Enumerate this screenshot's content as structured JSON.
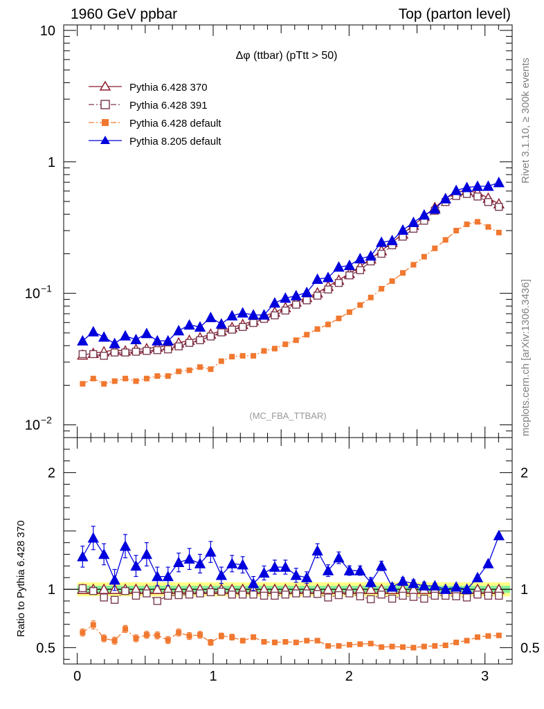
{
  "header": {
    "left": "1960 GeV ppbar",
    "right": "Top (parton level)"
  },
  "side_labels": {
    "rivet": "Rivet 3.1.10, ≥ 300k events",
    "source": "mcplots.cern.ch [arXiv:1306.3436]"
  },
  "chart_data": [
    {
      "panel": "main",
      "type": "line",
      "title": "Δφ (ttbar) (pTtt > 50)",
      "analysis_label": "(MC_FBA_TTBAR)",
      "xlabel": "",
      "ylabel": "",
      "yscale": "log",
      "xlim": [
        -0.1,
        3.2
      ],
      "ylim": [
        0.008,
        11
      ],
      "y_ticks": [
        {
          "value": 10,
          "label": "10"
        },
        {
          "value": 1,
          "label": "1"
        },
        {
          "value": 0.1,
          "base": "10",
          "exp": "−1"
        },
        {
          "value": 0.01,
          "base": "10",
          "exp": "−2"
        }
      ],
      "x": [
        0.0393,
        0.1178,
        0.1963,
        0.2749,
        0.3534,
        0.432,
        0.5105,
        0.589,
        0.6676,
        0.7461,
        0.8247,
        0.9032,
        0.9817,
        1.0603,
        1.1388,
        1.2174,
        1.2959,
        1.3744,
        1.453,
        1.5315,
        1.6101,
        1.6886,
        1.7671,
        1.8457,
        1.9242,
        2.0028,
        2.0813,
        2.1598,
        2.2384,
        2.3169,
        2.3955,
        2.474,
        2.5525,
        2.6311,
        2.7096,
        2.7882,
        2.8667,
        2.9452,
        3.0238,
        3.1023
      ],
      "series": [
        {
          "name": "Pythia 6.428 370",
          "color": "#8B1A2B",
          "marker": "triangle-open",
          "line": "solid",
          "values": [
            0.034,
            0.035,
            0.036,
            0.037,
            0.0365,
            0.0375,
            0.038,
            0.039,
            0.04,
            0.042,
            0.044,
            0.046,
            0.049,
            0.052,
            0.055,
            0.058,
            0.062,
            0.067,
            0.072,
            0.078,
            0.086,
            0.093,
            0.101,
            0.113,
            0.126,
            0.142,
            0.16,
            0.183,
            0.211,
            0.244,
            0.283,
            0.33,
            0.385,
            0.45,
            0.525,
            0.59,
            0.605,
            0.585,
            0.53,
            0.48
          ]
        },
        {
          "name": "Pythia 6.428 391",
          "color": "#7A3B50",
          "marker": "square-open",
          "line": "dashdot",
          "values": [
            0.0345,
            0.0345,
            0.0335,
            0.0355,
            0.0355,
            0.036,
            0.0365,
            0.037,
            0.0375,
            0.0395,
            0.042,
            0.044,
            0.047,
            0.0505,
            0.053,
            0.0555,
            0.0595,
            0.064,
            0.068,
            0.074,
            0.082,
            0.0885,
            0.096,
            0.107,
            0.12,
            0.137,
            0.15,
            0.175,
            0.2,
            0.232,
            0.27,
            0.31,
            0.357,
            0.425,
            0.495,
            0.55,
            0.57,
            0.545,
            0.495,
            0.455
          ]
        },
        {
          "name": "Pythia 6.428 default",
          "color": "#F07830",
          "marker": "square-filled",
          "line": "dashdot",
          "values": [
            0.0205,
            0.0225,
            0.0205,
            0.0215,
            0.0225,
            0.0215,
            0.0225,
            0.0235,
            0.0235,
            0.0255,
            0.026,
            0.0275,
            0.0265,
            0.0305,
            0.033,
            0.0335,
            0.0335,
            0.0365,
            0.038,
            0.041,
            0.044,
            0.0485,
            0.0535,
            0.058,
            0.0645,
            0.072,
            0.0815,
            0.093,
            0.1085,
            0.124,
            0.143,
            0.165,
            0.19,
            0.22,
            0.255,
            0.3,
            0.335,
            0.35,
            0.32,
            0.29
          ]
        },
        {
          "name": "Pythia 8.205 default",
          "color": "#0000DD",
          "marker": "triangle-filled",
          "line": "solid",
          "values": [
            0.0435,
            0.051,
            0.0465,
            0.0415,
            0.0475,
            0.0445,
            0.0495,
            0.0435,
            0.0435,
            0.052,
            0.0575,
            0.0555,
            0.0655,
            0.0585,
            0.0675,
            0.071,
            0.0685,
            0.0685,
            0.0845,
            0.092,
            0.096,
            0.1015,
            0.128,
            0.132,
            0.1585,
            0.163,
            0.1835,
            0.1925,
            0.2445,
            0.252,
            0.3025,
            0.346,
            0.3945,
            0.4375,
            0.5245,
            0.606,
            0.638,
            0.6515,
            0.653,
            0.696
          ]
        }
      ],
      "errors": {
        "Pythia 8.205 default": 0.07,
        "Pythia 6.428 370": 0.03,
        "Pythia 6.428 391": 0.03,
        "Pythia 6.428 default": 0.03
      }
    },
    {
      "panel": "ratio",
      "type": "line",
      "ylabel": "Ratio to Pythia 6.428 370",
      "xlabel": "",
      "xlim": [
        -0.1,
        3.2
      ],
      "ylim": [
        0.36,
        2.3
      ],
      "y_ticks": [
        {
          "value": 0.5,
          "label": "0.5"
        },
        {
          "value": 1,
          "label": "1"
        },
        {
          "value": 2,
          "label": "2"
        }
      ],
      "x_ticks": [
        {
          "value": 0,
          "label": "0"
        },
        {
          "value": 1,
          "label": "1"
        },
        {
          "value": 2,
          "label": "2"
        },
        {
          "value": 3,
          "label": "3"
        }
      ],
      "reference_band": {
        "inner": [
          0.97,
          1.03
        ],
        "outer": [
          0.94,
          1.06
        ]
      },
      "series": [
        {
          "name": "Pythia 6.428 391",
          "color": "#7A3B50",
          "marker": "square-open",
          "line": "dashdot",
          "values": [
            1.01,
            0.985,
            0.93,
            0.91,
            0.985,
            0.945,
            0.965,
            0.9,
            0.945,
            0.95,
            0.955,
            0.965,
            0.975,
            0.98,
            0.955,
            0.955,
            0.955,
            0.945,
            0.945,
            0.955,
            0.965,
            0.965,
            0.96,
            0.93,
            0.95,
            0.965,
            0.94,
            0.915,
            0.955,
            0.92,
            0.945,
            0.935,
            0.92,
            0.945,
            0.945,
            0.94,
            0.93,
            0.955,
            0.945,
            0.945
          ],
          "errors": [
            0.02,
            0.02,
            0.02,
            0.02,
            0.02,
            0.02,
            0.02,
            0.02,
            0.02,
            0.02,
            0.02,
            0.02,
            0.02,
            0.02,
            0.015,
            0.015,
            0.015,
            0.015,
            0.015,
            0.015,
            0.015,
            0.015,
            0.015,
            0.015,
            0.015,
            0.015,
            0.015,
            0.015,
            0.015,
            0.015,
            0.015,
            0.015,
            0.015,
            0.015,
            0.015,
            0.015,
            0.015,
            0.015,
            0.015,
            0.015
          ]
        },
        {
          "name": "Pythia 6.428 default",
          "color": "#F07830",
          "marker": "square-filled",
          "line": "dashdot",
          "values": [
            0.63,
            0.695,
            0.58,
            0.56,
            0.66,
            0.58,
            0.61,
            0.605,
            0.565,
            0.63,
            0.6,
            0.61,
            0.545,
            0.6,
            0.59,
            0.56,
            0.59,
            0.55,
            0.545,
            0.55,
            0.545,
            0.56,
            0.56,
            0.515,
            0.515,
            0.525,
            0.53,
            0.535,
            0.505,
            0.51,
            0.505,
            0.5,
            0.51,
            0.515,
            0.52,
            0.545,
            0.56,
            0.59,
            0.6,
            0.605
          ],
          "errors": [
            0.03,
            0.035,
            0.03,
            0.03,
            0.03,
            0.03,
            0.03,
            0.03,
            0.03,
            0.03,
            0.03,
            0.03,
            0.025,
            0.025,
            0.025,
            0.02,
            0.02,
            0.02,
            0.02,
            0.02,
            0.015,
            0.015,
            0.015,
            0.015,
            0.015,
            0.015,
            0.015,
            0.015,
            0.015,
            0.012,
            0.012,
            0.012,
            0.012,
            0.012,
            0.012,
            0.012,
            0.012,
            0.012,
            0.012,
            0.012
          ]
        },
        {
          "name": "Pythia 8.205 default",
          "color": "#0000DD",
          "marker": "triangle-filled",
          "line": "solid",
          "values": [
            1.28,
            1.44,
            1.3,
            1.08,
            1.37,
            1.2,
            1.3,
            1.11,
            1.11,
            1.23,
            1.26,
            1.22,
            1.32,
            1.12,
            1.22,
            1.21,
            1.05,
            1.14,
            1.19,
            1.19,
            1.12,
            1.1,
            1.33,
            1.16,
            1.27,
            1.16,
            1.16,
            1.06,
            1.2,
            1.02,
            1.07,
            1.05,
            1.03,
            1.03,
            1.0,
            1.02,
            1.0,
            1.1,
            1.22,
            1.46
          ],
          "errors": [
            0.09,
            0.1,
            0.09,
            0.09,
            0.1,
            0.09,
            0.1,
            0.08,
            0.08,
            0.08,
            0.09,
            0.08,
            0.09,
            0.07,
            0.07,
            0.07,
            0.06,
            0.06,
            0.06,
            0.06,
            0.06,
            0.05,
            0.06,
            0.05,
            0.05,
            0.04,
            0.04,
            0.04,
            0.04,
            0.03,
            0.03,
            0.03,
            0.03,
            0.02,
            0.02,
            0.02,
            0.02,
            0.02,
            0.02,
            0.02
          ]
        }
      ]
    }
  ]
}
